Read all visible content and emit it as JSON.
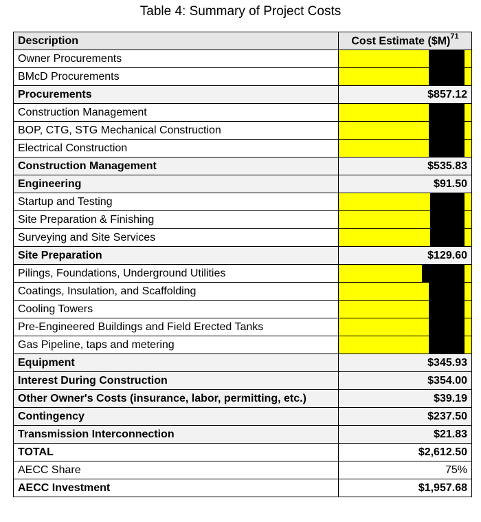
{
  "title": "Table 4: Summary of Project Costs",
  "header": {
    "description": "Description",
    "cost": "Cost Estimate ($M)",
    "footnote": "71"
  },
  "rows": [
    {
      "label": "Owner Procurements",
      "value": ""
    },
    {
      "label": "BMcD Procurements",
      "value": ""
    },
    {
      "label": "Procurements",
      "value": "$857.12"
    },
    {
      "label": "Construction Management",
      "value": ""
    },
    {
      "label": "BOP, CTG, STG Mechanical Construction",
      "value": ""
    },
    {
      "label": "Electrical Construction",
      "value": ""
    },
    {
      "label": "Construction Management",
      "value": "$535.83"
    },
    {
      "label": "Engineering",
      "value": "$91.50"
    },
    {
      "label": "Startup and Testing",
      "value": ""
    },
    {
      "label": "Site Preparation & Finishing",
      "value": ""
    },
    {
      "label": "Surveying and Site Services",
      "value": ""
    },
    {
      "label": "Site Preparation",
      "value": "$129.60"
    },
    {
      "label": "Pilings, Foundations, Underground Utilities",
      "value": ""
    },
    {
      "label": "Coatings, Insulation, and Scaffolding",
      "value": ""
    },
    {
      "label": "Cooling Towers",
      "value": ""
    },
    {
      "label": "Pre-Engineered Buildings and Field Erected Tanks",
      "value": ""
    },
    {
      "label": "Gas Pipeline, taps and metering",
      "value": ""
    },
    {
      "label": "Equipment",
      "value": "$345.93"
    },
    {
      "label": "Interest During Construction",
      "value": "$354.00"
    },
    {
      "label": "Other Owner's Costs (insurance, labor, permitting, etc.)",
      "value": "$39.19"
    },
    {
      "label": "Contingency",
      "value": "$237.50"
    },
    {
      "label": "Transmission Interconnection",
      "value": "$21.83"
    },
    {
      "label": "TOTAL",
      "value": "$2,612.50"
    },
    {
      "label": "AECC Share",
      "value": "75%"
    },
    {
      "label": "AECC Investment",
      "value": "$1,957.68"
    }
  ],
  "colors": {
    "redaction_highlight": "#ffff00",
    "redaction_block": "#000000",
    "subtotal_fill": "#f2f2f2",
    "header_fill": "#e7e6e6"
  }
}
